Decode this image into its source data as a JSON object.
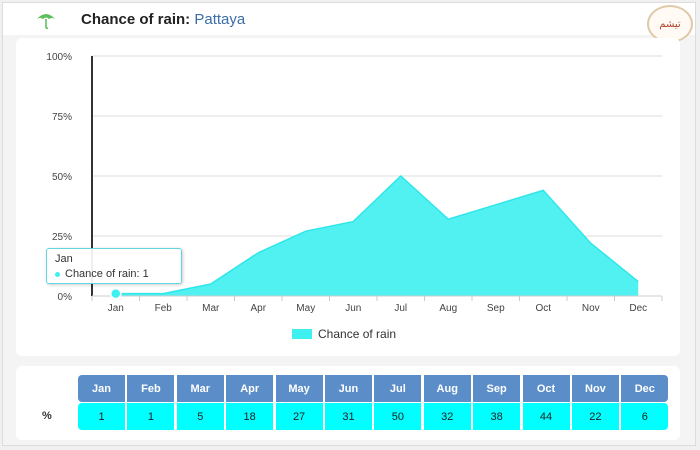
{
  "header": {
    "title_label": "Chance of rain:",
    "city": "Pattaya",
    "logo_text": "تيشم"
  },
  "tooltip": {
    "month": "Jan",
    "text": "Chance of rain: 1"
  },
  "legend": {
    "label": "Chance of rain"
  },
  "table": {
    "row_label": "%",
    "months": [
      "Jan",
      "Feb",
      "Mar",
      "Apr",
      "May",
      "Jun",
      "Jul",
      "Aug",
      "Sep",
      "Oct",
      "Nov",
      "Dec"
    ],
    "values": [
      "1",
      "1",
      "5",
      "18",
      "27",
      "31",
      "50",
      "32",
      "38",
      "44",
      "22",
      "6"
    ]
  },
  "colors": {
    "area": "#3ff0f0",
    "header_cell": "#5b8ec9",
    "value_cell": "#00ffff"
  },
  "chart_data": {
    "type": "area",
    "categories": [
      "Jan",
      "Feb",
      "Mar",
      "Apr",
      "May",
      "Jun",
      "Jul",
      "Aug",
      "Sep",
      "Oct",
      "Nov",
      "Dec"
    ],
    "series": [
      {
        "name": "Chance of rain",
        "values": [
          1,
          1,
          5,
          18,
          27,
          31,
          50,
          32,
          38,
          44,
          22,
          6
        ]
      }
    ],
    "y_ticks": [
      "0%",
      "25%",
      "50%",
      "75%",
      "100%"
    ],
    "ylim": [
      0,
      100
    ],
    "grid": true,
    "legend_position": "bottom-center"
  }
}
